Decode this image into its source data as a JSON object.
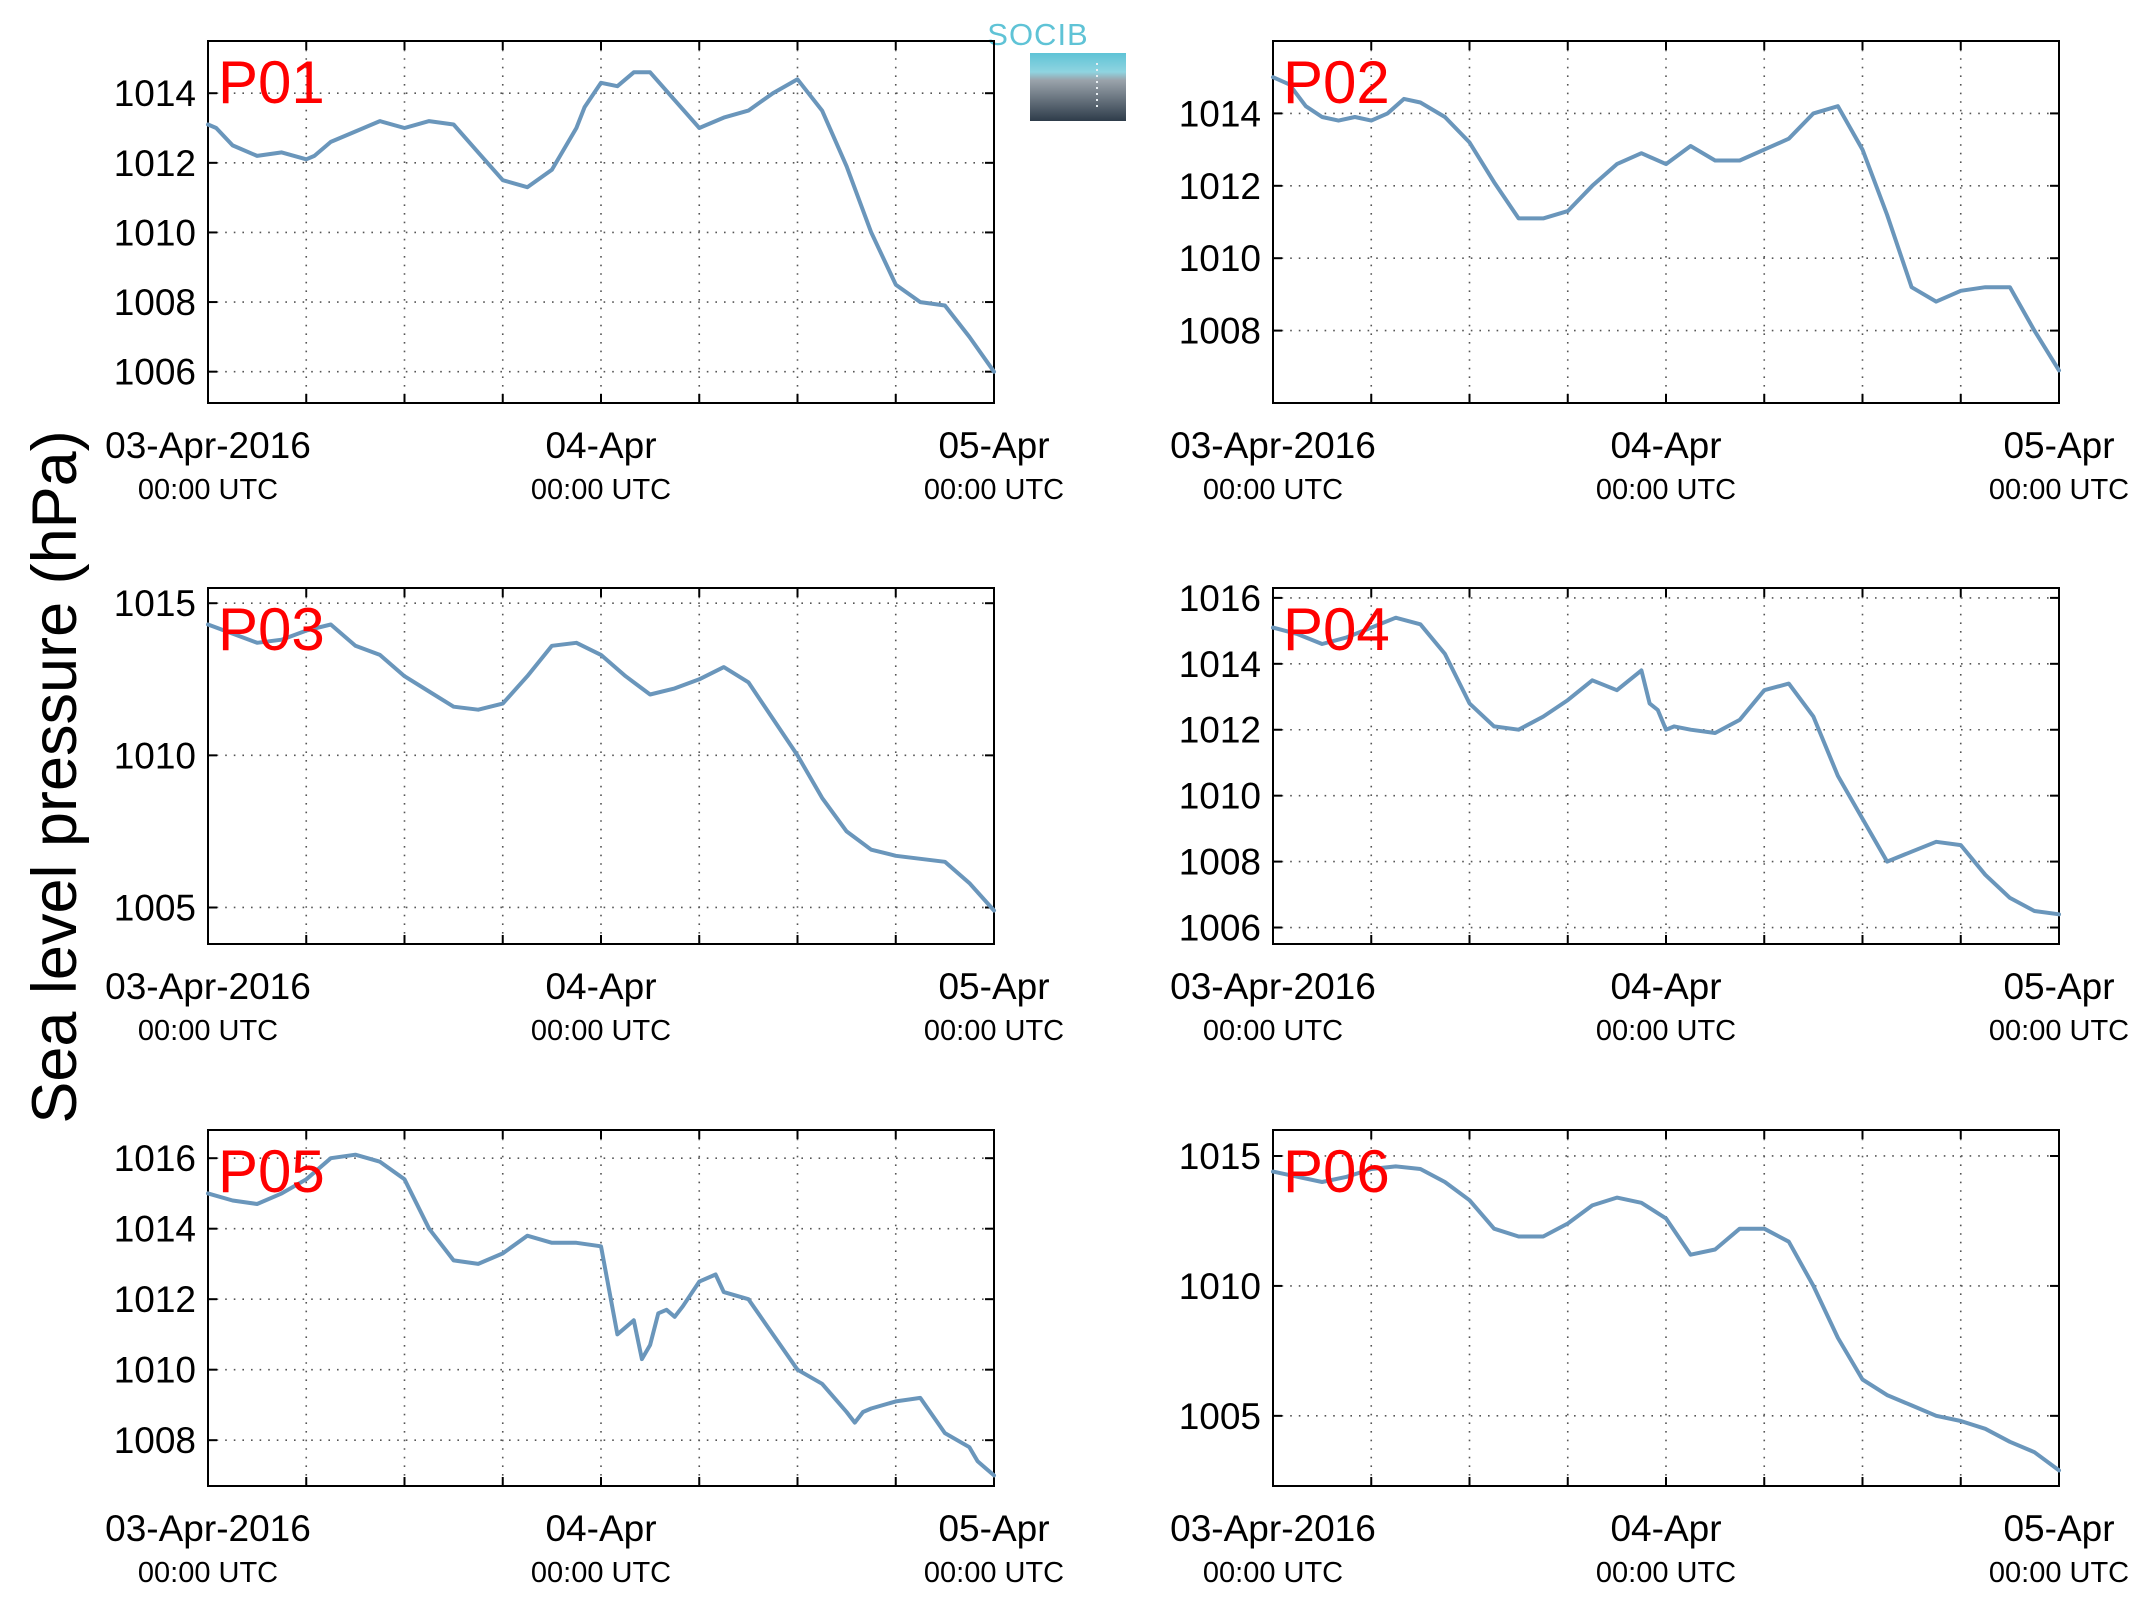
{
  "figure": {
    "ylabel": "Sea level pressure (hPa)",
    "logo_text": "SOCIB",
    "line_color": "#6a96bb",
    "label_color": "#ff0000",
    "grid": "dotted"
  },
  "chart_data": [
    {
      "type": "line",
      "panel_label": "P01",
      "ylim": [
        1005.1,
        1015.5
      ],
      "yticks": [
        1006,
        1008,
        1010,
        1012,
        1014
      ],
      "xlim": [
        "2016-04-03 00:00",
        "2016-04-05 00:00"
      ],
      "xticks": [
        {
          "line1": "03-Apr-2016",
          "line2": "00:00 UTC"
        },
        {
          "line1": "04-Apr",
          "line2": "00:00 UTC"
        },
        {
          "line1": "05-Apr",
          "line2": "00:00 UTC"
        }
      ],
      "x_hours": [
        0,
        1,
        3,
        6,
        9,
        12,
        13,
        15,
        18,
        21,
        24,
        27,
        30,
        33,
        36,
        39,
        42,
        45,
        46,
        48,
        50,
        52,
        54,
        57,
        60,
        63,
        66,
        69,
        72,
        75,
        78,
        81,
        84,
        87,
        90,
        93,
        96
      ],
      "values": [
        1013.1,
        1013.0,
        1012.5,
        1012.2,
        1012.3,
        1012.1,
        1012.2,
        1012.6,
        1012.9,
        1013.2,
        1013.0,
        1013.2,
        1013.1,
        1012.3,
        1011.5,
        1011.3,
        1011.8,
        1013.0,
        1013.6,
        1014.3,
        1014.2,
        1014.6,
        1014.6,
        1013.8,
        1013.0,
        1013.3,
        1013.5,
        1014.0,
        1014.4,
        1013.5,
        1011.9,
        1010.0,
        1008.5,
        1008.0,
        1007.9,
        1007.0,
        1006.0
      ]
    },
    {
      "type": "line",
      "panel_label": "P02",
      "ylim": [
        1006,
        1016
      ],
      "yticks": [
        1008,
        1010,
        1012,
        1014
      ],
      "xlim": [
        "2016-04-03 00:00",
        "2016-04-05 00:00"
      ],
      "xticks": [
        {
          "line1": "03-Apr-2016",
          "line2": "00:00 UTC"
        },
        {
          "line1": "04-Apr",
          "line2": "00:00 UTC"
        },
        {
          "line1": "05-Apr",
          "line2": "00:00 UTC"
        }
      ],
      "x_hours": [
        0,
        2,
        4,
        6,
        8,
        10,
        12,
        14,
        16,
        18,
        21,
        24,
        27,
        30,
        33,
        36,
        39,
        42,
        45,
        48,
        51,
        54,
        57,
        60,
        63,
        66,
        69,
        72,
        75,
        78,
        81,
        84,
        87,
        90,
        93,
        96
      ],
      "values": [
        1015.0,
        1014.8,
        1014.2,
        1013.9,
        1013.8,
        1013.9,
        1013.8,
        1014.0,
        1014.4,
        1014.3,
        1013.9,
        1013.2,
        1012.1,
        1011.1,
        1011.1,
        1011.3,
        1012.0,
        1012.6,
        1012.9,
        1012.6,
        1013.1,
        1012.7,
        1012.7,
        1013.0,
        1013.3,
        1014.0,
        1014.2,
        1013.0,
        1011.2,
        1009.2,
        1008.8,
        1009.1,
        1009.2,
        1009.2,
        1008.0,
        1006.9
      ]
    },
    {
      "type": "line",
      "panel_label": "P03",
      "ylim": [
        1003.8,
        1015.5
      ],
      "yticks": [
        1005,
        1010,
        1015
      ],
      "xlim": [
        "2016-04-03 00:00",
        "2016-04-05 00:00"
      ],
      "xticks": [
        {
          "line1": "03-Apr-2016",
          "line2": "00:00 UTC"
        },
        {
          "line1": "04-Apr",
          "line2": "00:00 UTC"
        },
        {
          "line1": "05-Apr",
          "line2": "00:00 UTC"
        }
      ],
      "x_hours": [
        0,
        3,
        6,
        9,
        12,
        15,
        18,
        21,
        24,
        27,
        30,
        33,
        36,
        39,
        42,
        45,
        48,
        51,
        54,
        57,
        60,
        63,
        66,
        69,
        72,
        75,
        78,
        81,
        84,
        87,
        90,
        93,
        96
      ],
      "values": [
        1014.3,
        1014.0,
        1013.7,
        1013.8,
        1014.1,
        1014.3,
        1013.6,
        1013.3,
        1012.6,
        1012.1,
        1011.6,
        1011.5,
        1011.7,
        1012.6,
        1013.6,
        1013.7,
        1013.3,
        1012.6,
        1012.0,
        1012.2,
        1012.5,
        1012.9,
        1012.4,
        1011.2,
        1010.0,
        1008.6,
        1007.5,
        1006.9,
        1006.7,
        1006.6,
        1006.5,
        1005.8,
        1004.9
      ]
    },
    {
      "type": "line",
      "panel_label": "P04",
      "ylim": [
        1005.5,
        1016.3
      ],
      "yticks": [
        1006,
        1008,
        1010,
        1012,
        1014,
        1016
      ],
      "xlim": [
        "2016-04-03 00:00",
        "2016-04-05 00:00"
      ],
      "xticks": [
        {
          "line1": "03-Apr-2016",
          "line2": "00:00 UTC"
        },
        {
          "line1": "04-Apr",
          "line2": "00:00 UTC"
        },
        {
          "line1": "05-Apr",
          "line2": "00:00 UTC"
        }
      ],
      "x_hours": [
        0,
        3,
        6,
        9,
        12,
        15,
        18,
        21,
        24,
        27,
        30,
        33,
        36,
        39,
        42,
        45,
        46,
        47,
        48,
        49,
        51,
        54,
        57,
        60,
        63,
        66,
        69,
        72,
        75,
        78,
        81,
        84,
        87,
        90,
        93,
        96
      ],
      "values": [
        1015.1,
        1014.9,
        1014.6,
        1014.8,
        1015.1,
        1015.4,
        1015.2,
        1014.3,
        1012.8,
        1012.1,
        1012.0,
        1012.4,
        1012.9,
        1013.5,
        1013.2,
        1013.8,
        1012.8,
        1012.6,
        1012.0,
        1012.1,
        1012.0,
        1011.9,
        1012.3,
        1013.2,
        1013.4,
        1012.4,
        1010.6,
        1009.3,
        1008.0,
        1008.3,
        1008.6,
        1008.5,
        1007.6,
        1006.9,
        1006.5,
        1006.4
      ]
    },
    {
      "type": "line",
      "panel_label": "P05",
      "ylim": [
        1006.7,
        1016.8
      ],
      "yticks": [
        1008,
        1010,
        1012,
        1014,
        1016
      ],
      "xlim": [
        "2016-04-03 00:00",
        "2016-04-05 00:00"
      ],
      "xticks": [
        {
          "line1": "03-Apr-2016",
          "line2": "00:00 UTC"
        },
        {
          "line1": "04-Apr",
          "line2": "00:00 UTC"
        },
        {
          "line1": "05-Apr",
          "line2": "00:00 UTC"
        }
      ],
      "x_hours": [
        0,
        3,
        6,
        9,
        12,
        15,
        18,
        21,
        24,
        27,
        30,
        33,
        36,
        39,
        42,
        45,
        48,
        50,
        52,
        53,
        54,
        55,
        56,
        57,
        58,
        60,
        62,
        63,
        66,
        69,
        72,
        75,
        78,
        79,
        80,
        81,
        84,
        87,
        90,
        93,
        94,
        95,
        96
      ],
      "values": [
        1015.0,
        1014.8,
        1014.7,
        1015.0,
        1015.4,
        1016.0,
        1016.1,
        1015.9,
        1015.4,
        1014.0,
        1013.1,
        1013.0,
        1013.3,
        1013.8,
        1013.6,
        1013.6,
        1013.5,
        1011.0,
        1011.4,
        1010.3,
        1010.7,
        1011.6,
        1011.7,
        1011.5,
        1011.8,
        1012.5,
        1012.7,
        1012.2,
        1012.0,
        1011.0,
        1010.0,
        1009.6,
        1008.8,
        1008.5,
        1008.8,
        1008.9,
        1009.1,
        1009.2,
        1008.2,
        1007.8,
        1007.4,
        1007.2,
        1007.0
      ]
    },
    {
      "type": "line",
      "panel_label": "P06",
      "ylim": [
        1002.3,
        1016
      ],
      "yticks": [
        1005,
        1010,
        1015
      ],
      "xlim": [
        "2016-04-03 00:00",
        "2016-04-05 00:00"
      ],
      "xticks": [
        {
          "line1": "03-Apr-2016",
          "line2": "00:00 UTC"
        },
        {
          "line1": "04-Apr",
          "line2": "00:00 UTC"
        },
        {
          "line1": "05-Apr",
          "line2": "00:00 UTC"
        }
      ],
      "x_hours": [
        0,
        3,
        6,
        9,
        12,
        15,
        18,
        21,
        24,
        27,
        30,
        33,
        36,
        39,
        42,
        45,
        48,
        51,
        54,
        57,
        60,
        63,
        66,
        69,
        72,
        75,
        78,
        81,
        84,
        87,
        90,
        93,
        96
      ],
      "values": [
        1014.4,
        1014.2,
        1014.0,
        1014.2,
        1014.5,
        1014.6,
        1014.5,
        1014.0,
        1013.3,
        1012.2,
        1011.9,
        1011.9,
        1012.4,
        1013.1,
        1013.4,
        1013.2,
        1012.6,
        1011.2,
        1011.4,
        1012.2,
        1012.2,
        1011.7,
        1010.0,
        1008.0,
        1006.4,
        1005.8,
        1005.4,
        1005.0,
        1004.8,
        1004.5,
        1004.0,
        1003.6,
        1002.9
      ]
    }
  ]
}
